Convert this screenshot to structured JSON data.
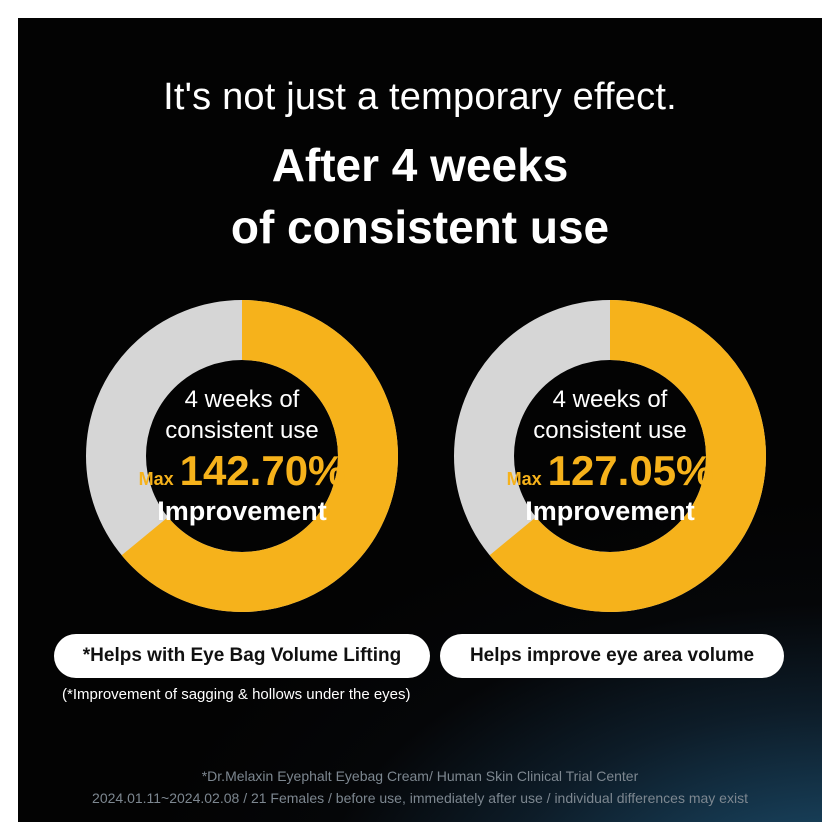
{
  "headline": "It's not just a temporary effect.",
  "title_lines": [
    "After 4 weeks",
    "of consistent use"
  ],
  "chart_data": [
    {
      "type": "donut",
      "label_lines": [
        "4 weeks of",
        "consistent use"
      ],
      "prefix": "Max",
      "value_text": "142.70%",
      "caption": "Improvement",
      "value_percent": 142.7,
      "highlight_fraction": 0.64,
      "highlight_color": "#f6b21b",
      "base_color": "#d6d6d6",
      "badge": "*Helps with Eye Bag Volume Lifting"
    },
    {
      "type": "donut",
      "label_lines": [
        "4 weeks of",
        "consistent use"
      ],
      "prefix": "Max",
      "value_text": "127.05%",
      "caption": "Improvement",
      "value_percent": 127.05,
      "highlight_fraction": 0.64,
      "highlight_color": "#f6b21b",
      "base_color": "#d6d6d6",
      "badge": "Helps improve eye area volume"
    }
  ],
  "note": "(*Improvement of sagging & hollows under the eyes)",
  "footer_lines": [
    "*Dr.Melaxin Eyephalt Eyebag Cream/ Human Skin Clinical Trial Center",
    "2024.01.11~2024.02.08 / 21 Females / before use, immediately after use / individual differences may exist"
  ]
}
